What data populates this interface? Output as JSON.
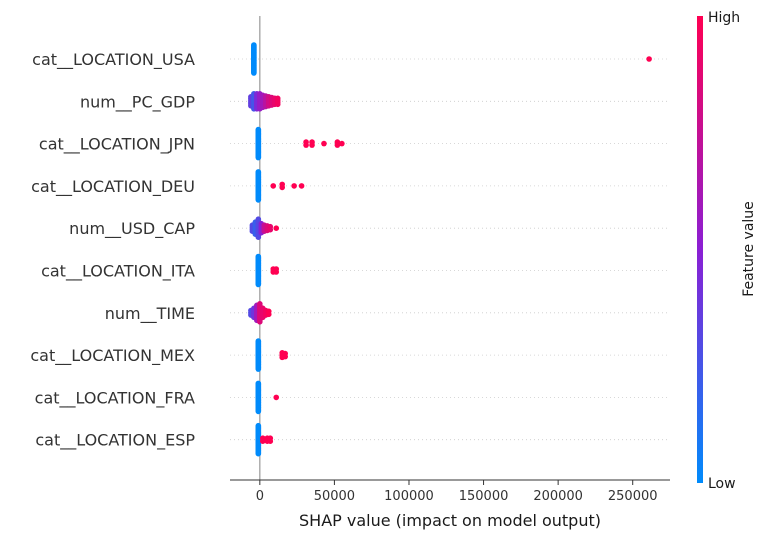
{
  "chart_data": {
    "type": "scatter",
    "subtype": "shap-beeswarm",
    "xlabel": "SHAP value (impact on model output)",
    "xlim": [
      -20000,
      275000
    ],
    "xticks": [
      0,
      50000,
      100000,
      150000,
      200000,
      250000
    ],
    "colorbar": {
      "label": "Feature value",
      "high_label": "High",
      "low_label": "Low",
      "low_color": "#008bfb",
      "high_color": "#ff0052"
    },
    "grid": false,
    "features": [
      {
        "name": "cat__LOCATION_USA",
        "points": [
          {
            "x": -4000,
            "v": 0,
            "n": 40
          },
          {
            "x": 261000,
            "v": 1,
            "n": 1
          }
        ]
      },
      {
        "name": "num__PC_GDP",
        "points": [
          {
            "x": -6000,
            "v": 0.35,
            "n": 6
          },
          {
            "x": -4000,
            "v": 0.25,
            "n": 10
          },
          {
            "x": -2000,
            "v": 0.45,
            "n": 10
          },
          {
            "x": 0,
            "v": 0.55,
            "n": 10
          },
          {
            "x": 2000,
            "v": 0.6,
            "n": 8
          },
          {
            "x": 4000,
            "v": 0.7,
            "n": 7
          },
          {
            "x": 6000,
            "v": 0.8,
            "n": 6
          },
          {
            "x": 8000,
            "v": 0.85,
            "n": 5
          },
          {
            "x": 10000,
            "v": 0.9,
            "n": 4
          },
          {
            "x": 12000,
            "v": 0.95,
            "n": 4
          }
        ]
      },
      {
        "name": "cat__LOCATION_JPN",
        "points": [
          {
            "x": -1000,
            "v": 0,
            "n": 40
          },
          {
            "x": 31000,
            "v": 1,
            "n": 2
          },
          {
            "x": 35000,
            "v": 1,
            "n": 2
          },
          {
            "x": 43000,
            "v": 1,
            "n": 1
          },
          {
            "x": 52000,
            "v": 1,
            "n": 2
          },
          {
            "x": 55000,
            "v": 1,
            "n": 1
          }
        ]
      },
      {
        "name": "cat__LOCATION_DEU",
        "points": [
          {
            "x": -1000,
            "v": 0,
            "n": 40
          },
          {
            "x": 9000,
            "v": 1,
            "n": 1
          },
          {
            "x": 15000,
            "v": 1,
            "n": 2
          },
          {
            "x": 23000,
            "v": 1,
            "n": 1
          },
          {
            "x": 28000,
            "v": 1,
            "n": 1
          }
        ]
      },
      {
        "name": "num__USD_CAP",
        "points": [
          {
            "x": -5000,
            "v": 0.3,
            "n": 4
          },
          {
            "x": -3000,
            "v": 0.2,
            "n": 8
          },
          {
            "x": -1000,
            "v": 0.3,
            "n": 12
          },
          {
            "x": 1000,
            "v": 0.5,
            "n": 6
          },
          {
            "x": 3000,
            "v": 0.75,
            "n": 4
          },
          {
            "x": 5000,
            "v": 0.85,
            "n": 3
          },
          {
            "x": 7000,
            "v": 0.9,
            "n": 2
          },
          {
            "x": 11000,
            "v": 1,
            "n": 1
          }
        ]
      },
      {
        "name": "cat__LOCATION_ITA",
        "points": [
          {
            "x": -1000,
            "v": 0,
            "n": 40
          },
          {
            "x": 9000,
            "v": 1,
            "n": 2
          },
          {
            "x": 11000,
            "v": 1,
            "n": 2
          }
        ]
      },
      {
        "name": "num__TIME",
        "points": [
          {
            "x": -6000,
            "v": 0.3,
            "n": 3
          },
          {
            "x": -4000,
            "v": 0.4,
            "n": 6
          },
          {
            "x": -2000,
            "v": 0.6,
            "n": 10
          },
          {
            "x": 0,
            "v": 0.85,
            "n": 12
          },
          {
            "x": 2000,
            "v": 0.9,
            "n": 6
          },
          {
            "x": 4000,
            "v": 0.95,
            "n": 3
          },
          {
            "x": 6000,
            "v": 1,
            "n": 2
          }
        ]
      },
      {
        "name": "cat__LOCATION_MEX",
        "points": [
          {
            "x": -1000,
            "v": 0,
            "n": 40
          },
          {
            "x": 15000,
            "v": 1,
            "n": 3
          },
          {
            "x": 17000,
            "v": 1,
            "n": 2
          }
        ]
      },
      {
        "name": "cat__LOCATION_FRA",
        "points": [
          {
            "x": -1000,
            "v": 0,
            "n": 40
          },
          {
            "x": 11000,
            "v": 1,
            "n": 1
          }
        ]
      },
      {
        "name": "cat__LOCATION_ESP",
        "points": [
          {
            "x": -1000,
            "v": 0,
            "n": 40
          },
          {
            "x": 2000,
            "v": 1,
            "n": 2
          },
          {
            "x": 5000,
            "v": 1,
            "n": 2
          },
          {
            "x": 7000,
            "v": 1,
            "n": 2
          }
        ]
      }
    ]
  }
}
